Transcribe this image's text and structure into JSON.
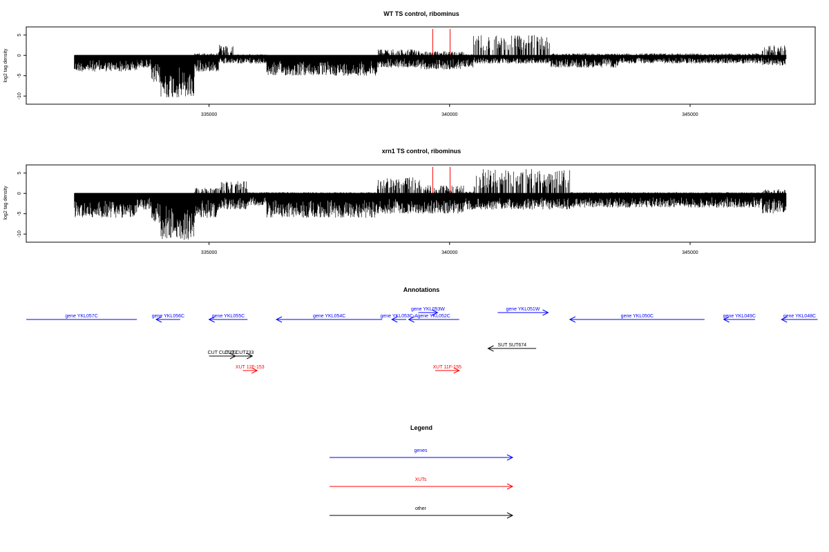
{
  "colors": {
    "genes": "#0000ff",
    "xuts": "#ff0000",
    "other": "#000000",
    "axis": "#000000"
  },
  "chart_data": [
    {
      "type": "bar",
      "title": "WT TS control, ribominus",
      "ylabel": "log2 tag density",
      "xlim": [
        331200,
        347600
      ],
      "ylim": [
        -12,
        7
      ],
      "yticks": [
        -10,
        -5,
        0,
        5
      ],
      "xticks": [
        335000,
        340000,
        345000
      ],
      "xtick_labels": [
        "335000",
        "340000",
        "345000"
      ],
      "red_spikes": [
        {
          "x": 339650,
          "y": 6.5
        },
        {
          "x": 340010,
          "y": 6.5
        },
        {
          "x": 339650,
          "y": 0
        },
        {
          "x": 340010,
          "y": 0
        }
      ],
      "envelope": [
        {
          "x0": 332200,
          "x1": 333500,
          "neg": -4,
          "pos": 0
        },
        {
          "x0": 333500,
          "x1": 333800,
          "neg": -3,
          "pos": 0
        },
        {
          "x0": 333800,
          "x1": 334000,
          "neg": -7,
          "pos": 0
        },
        {
          "x0": 334000,
          "x1": 334700,
          "neg": -10.5,
          "pos": 0
        },
        {
          "x0": 334700,
          "x1": 335200,
          "neg": -4,
          "pos": 0.5
        },
        {
          "x0": 335200,
          "x1": 335500,
          "neg": -2,
          "pos": 3
        },
        {
          "x0": 335500,
          "x1": 336200,
          "neg": -2,
          "pos": 0.3
        },
        {
          "x0": 336200,
          "x1": 338500,
          "neg": -5,
          "pos": 0
        },
        {
          "x0": 338500,
          "x1": 339400,
          "neg": -3,
          "pos": 1.5
        },
        {
          "x0": 339400,
          "x1": 340300,
          "neg": -3.5,
          "pos": 1
        },
        {
          "x0": 340300,
          "x1": 340500,
          "neg": -3,
          "pos": 0.3
        },
        {
          "x0": 340500,
          "x1": 342100,
          "neg": -2,
          "pos": 5
        },
        {
          "x0": 342100,
          "x1": 343500,
          "neg": -3,
          "pos": 0.5
        },
        {
          "x0": 343500,
          "x1": 346500,
          "neg": -2,
          "pos": 0.5
        },
        {
          "x0": 346500,
          "x1": 347000,
          "neg": -2.5,
          "pos": 2.5
        }
      ]
    },
    {
      "type": "bar",
      "title": "xrn1 TS control, ribominus",
      "ylabel": "log2 tag density",
      "xlim": [
        331200,
        347600
      ],
      "ylim": [
        -12,
        7
      ],
      "yticks": [
        -10,
        -5,
        0,
        5
      ],
      "xticks": [
        335000,
        340000,
        345000
      ],
      "xtick_labels": [
        "335000",
        "340000",
        "345000"
      ],
      "red_spikes": [
        {
          "x": 339650,
          "y": 6.5
        },
        {
          "x": 340010,
          "y": 6.5
        },
        {
          "x": 339650,
          "y": 0
        },
        {
          "x": 340010,
          "y": 0
        }
      ],
      "envelope": [
        {
          "x0": 332200,
          "x1": 333500,
          "neg": -6,
          "pos": 0
        },
        {
          "x0": 333500,
          "x1": 333800,
          "neg": -4,
          "pos": 0
        },
        {
          "x0": 333800,
          "x1": 334000,
          "neg": -8,
          "pos": 0
        },
        {
          "x0": 334000,
          "x1": 334700,
          "neg": -11.5,
          "pos": 0
        },
        {
          "x0": 334700,
          "x1": 335200,
          "neg": -6,
          "pos": 1.5
        },
        {
          "x0": 335200,
          "x1": 335800,
          "neg": -4,
          "pos": 3
        },
        {
          "x0": 335800,
          "x1": 336200,
          "neg": -3,
          "pos": 0.3
        },
        {
          "x0": 336200,
          "x1": 338500,
          "neg": -6,
          "pos": 0.3
        },
        {
          "x0": 338500,
          "x1": 339400,
          "neg": -5,
          "pos": 4
        },
        {
          "x0": 339400,
          "x1": 340300,
          "neg": -5,
          "pos": 2
        },
        {
          "x0": 340300,
          "x1": 340500,
          "neg": -4,
          "pos": 0.5
        },
        {
          "x0": 340500,
          "x1": 342500,
          "neg": -4,
          "pos": 6
        },
        {
          "x0": 342500,
          "x1": 346500,
          "neg": -3.5,
          "pos": 0.3
        },
        {
          "x0": 346500,
          "x1": 347000,
          "neg": -5,
          "pos": 1
        }
      ]
    }
  ],
  "annotations": {
    "title": "Annotations",
    "features": [
      {
        "label": "gene YKL057C",
        "kind": "genes",
        "x0": 331200,
        "x1": 333500,
        "dir": "none",
        "row": 0
      },
      {
        "label": "gene YKL056C",
        "kind": "genes",
        "x0": 333900,
        "x1": 334400,
        "dir": "left",
        "row": 0
      },
      {
        "label": "gene YKL055C",
        "kind": "genes",
        "x0": 335000,
        "x1": 335800,
        "dir": "left",
        "row": 0
      },
      {
        "label": "gene YKL054C",
        "kind": "genes",
        "x0": 336400,
        "x1": 338600,
        "dir": "left",
        "row": 0
      },
      {
        "label": "gene YKL053C-A",
        "kind": "genes",
        "x0": 338800,
        "x1": 339100,
        "dir": "left",
        "row": 0
      },
      {
        "label": "gene YKL053W",
        "kind": "genes",
        "x0": 339350,
        "x1": 339750,
        "dir": "right",
        "row": -1
      },
      {
        "label": "gene YKL052C",
        "kind": "genes",
        "x0": 339150,
        "x1": 340200,
        "dir": "left",
        "row": 0
      },
      {
        "label": "gene YKL051W",
        "kind": "genes",
        "x0": 341000,
        "x1": 342050,
        "dir": "right",
        "row": -1
      },
      {
        "label": "gene YKL050C",
        "kind": "genes",
        "x0": 342500,
        "x1": 345300,
        "dir": "left",
        "row": 0
      },
      {
        "label": "gene YKL049C",
        "kind": "genes",
        "x0": 345700,
        "x1": 346350,
        "dir": "left",
        "row": 0
      },
      {
        "label": "gene YKL048C",
        "kind": "genes",
        "x0": 346900,
        "x1": 347650,
        "dir": "left",
        "row": 0
      },
      {
        "label": "SUT SUT674",
        "kind": "other",
        "x0": 340800,
        "x1": 341800,
        "dir": "left",
        "row": 2
      },
      {
        "label": "CUT CUT232",
        "kind": "other",
        "x0": 335000,
        "x1": 335550,
        "dir": "right",
        "row": 3
      },
      {
        "label": "CUT CUT233",
        "kind": "other",
        "x0": 335350,
        "x1": 335900,
        "dir": "right",
        "row": 3
      },
      {
        "label": "XUT 11E-153",
        "kind": "xuts",
        "x0": 335700,
        "x1": 336000,
        "dir": "right",
        "row": 4
      },
      {
        "label": "XUT 11F-155",
        "kind": "xuts",
        "x0": 339700,
        "x1": 340200,
        "dir": "right",
        "row": 4
      }
    ]
  },
  "legend": {
    "title": "Legend",
    "items": [
      {
        "label": "genes",
        "kind": "genes"
      },
      {
        "label": "XUTs",
        "kind": "xuts"
      },
      {
        "label": "other",
        "kind": "other"
      }
    ]
  }
}
